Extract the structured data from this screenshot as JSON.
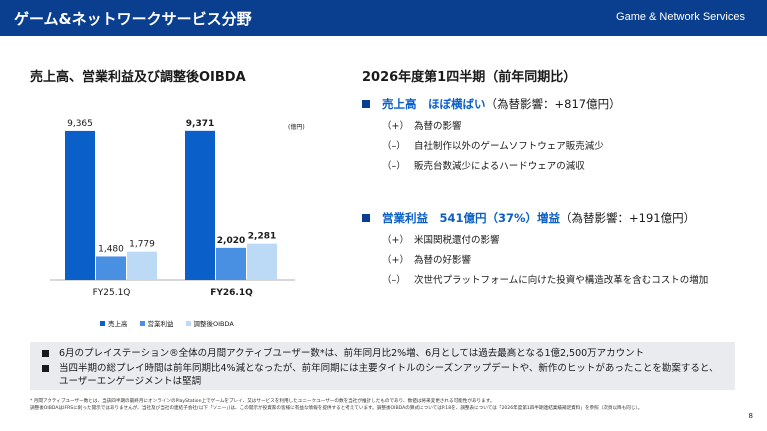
{
  "header": {
    "title": "ゲーム&ネットワークサービス分野",
    "subtitle": "Game & Network Services",
    "bg_color": "#0a3f8f"
  },
  "left": {
    "title": "売上高、営業利益及び調整後OIBDA",
    "unit": "(億円)"
  },
  "chart_data": {
    "type": "bar",
    "categories": [
      "FY25.1Q",
      "FY26.1Q"
    ],
    "series": [
      {
        "name": "売上高",
        "values": [
          9365,
          9371
        ],
        "color": "#0a5fc8"
      },
      {
        "name": "営業利益",
        "values": [
          1480,
          2020
        ],
        "color": "#4a90e2"
      },
      {
        "name": "調整後OIBDA",
        "values": [
          1779,
          2281
        ],
        "color": "#bcd9f5"
      }
    ],
    "value_labels": [
      [
        "9,365",
        "1,480",
        "1,779"
      ],
      [
        "9,371",
        "2,020",
        "2,281"
      ]
    ],
    "bold_category": "FY26.1Q",
    "ylim": [
      0,
      9800
    ],
    "grid": false,
    "legend_position": "bottom"
  },
  "right": {
    "title": "2026年度第1四半期（前年同期比）",
    "sales": {
      "highlight": "売上高　ほぼ横ばい",
      "detail": "（為替影響：+817億円）",
      "items": [
        {
          "sign": "（+）",
          "text": "為替の影響"
        },
        {
          "sign": "（–）",
          "text": "自社制作以外のゲームソフトウェア販売減少"
        },
        {
          "sign": "（–）",
          "text": "販売台数減少によるハードウェアの減収"
        }
      ]
    },
    "profit": {
      "highlight": "営業利益　541億円（37%）増益",
      "detail": "（為替影響：+191億円）",
      "items": [
        {
          "sign": "（+）",
          "text": "米国関税還付の影響"
        },
        {
          "sign": "（+）",
          "text": "為替の好影響"
        },
        {
          "sign": "（–）",
          "text": "次世代プラットフォームに向けた投資や構造改革を含むコストの増加"
        }
      ]
    }
  },
  "notes": [
    "6月のプレイステーション®全体の月間アクティブユーザー数*は、前年同月比2%増、6月としては過去最高となる1億2,500万アカウント",
    "当四半期の総プレイ時間は前年同期比4%減となったが、前年同期には主要タイトルのシーズンアップデートや、新作のヒットがあったことを勘案すると、ユーザーエンゲージメントは堅調"
  ],
  "footnotes": [
    "* 月間アクティブユーザー数とは、当該四半期の最終月にオンラインのPlayStation上でゲームをプレイ、又はサービスを利用したユニークユーザーの数を当社が推計したものであり、数値は将来変更される可能性があります。",
    "調整後OIBDAはIFRSに則った開示ではありませんが、当社及び当社の連結子会社(以下「ソニー」)は、この開示が投資家の皆様に有益な情報を提供すると考えています。調整後OIBDAの算式についてはP.18を、調整表については「2026年度第1四半期連結業績補足資料」を参照（次頁以降も同じ）。"
  ],
  "page_number": "8"
}
